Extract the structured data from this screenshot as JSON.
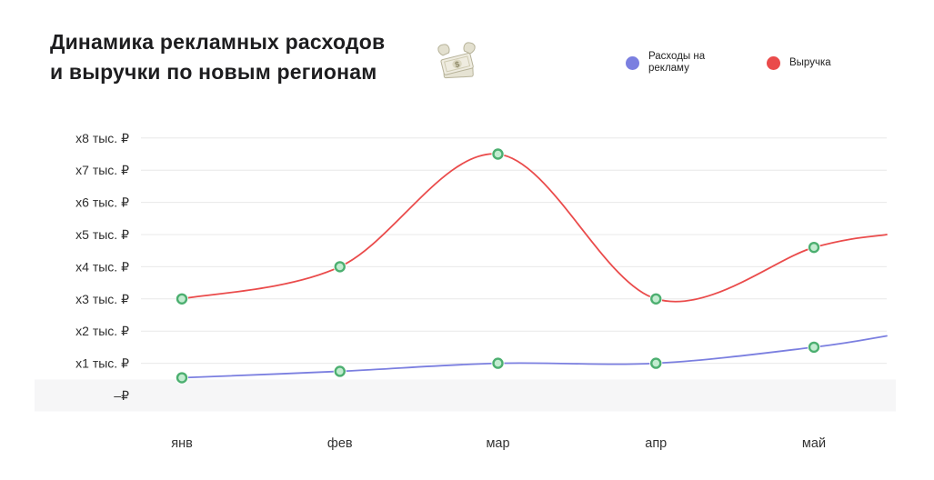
{
  "title": {
    "line1": "Динамика рекламных расходов",
    "line2": "и выручки по новым регионам"
  },
  "icons": {
    "title_icon": "money-with-wings-icon"
  },
  "legend": [
    {
      "id": "ad-spend",
      "label": "Расходы на рекламу",
      "color": "#7b7fe0"
    },
    {
      "id": "revenue",
      "label": "Выручка",
      "color": "#ea4b4b"
    }
  ],
  "chart_data": {
    "type": "line",
    "title": "Динамика рекламных расходов и выручки по новым регионам",
    "categories": [
      "янв",
      "фев",
      "мар",
      "апр",
      "май"
    ],
    "series": [
      {
        "id": "ad-spend",
        "name": "Расходы на рекламу",
        "color": "#7b7fe0",
        "values": [
          0.55,
          0.75,
          1,
          1,
          1.5
        ],
        "trailing_value": 1.85
      },
      {
        "id": "revenue",
        "name": "Выручка",
        "color": "#ea4b4b",
        "values": [
          3,
          4,
          7.5,
          3,
          4.6
        ],
        "trailing_value": 5
      }
    ],
    "y_ticks": [
      {
        "label": "x8 тыс. ₽",
        "value": 8
      },
      {
        "label": "x7 тыс. ₽",
        "value": 7
      },
      {
        "label": "x6 тыс. ₽",
        "value": 6
      },
      {
        "label": "x5 тыс. ₽",
        "value": 5
      },
      {
        "label": "x4 тыс. ₽",
        "value": 4
      },
      {
        "label": "x3 тыс. ₽",
        "value": 3
      },
      {
        "label": "x2 тыс. ₽",
        "value": 2
      },
      {
        "label": "x1 тыс. ₽",
        "value": 1
      },
      {
        "label": "–₽",
        "value": 0
      }
    ],
    "ylim": [
      0,
      8.5
    ],
    "xlabel": "",
    "ylabel": "",
    "grid": true,
    "legend_position": "top-right",
    "marker": {
      "fill": "#c2ecd0",
      "stroke": "#4caf70"
    },
    "grid_color": "#e8e8e8",
    "zero_band_color": "#f6f6f7",
    "axis_text_color": "#2e2e2e"
  }
}
